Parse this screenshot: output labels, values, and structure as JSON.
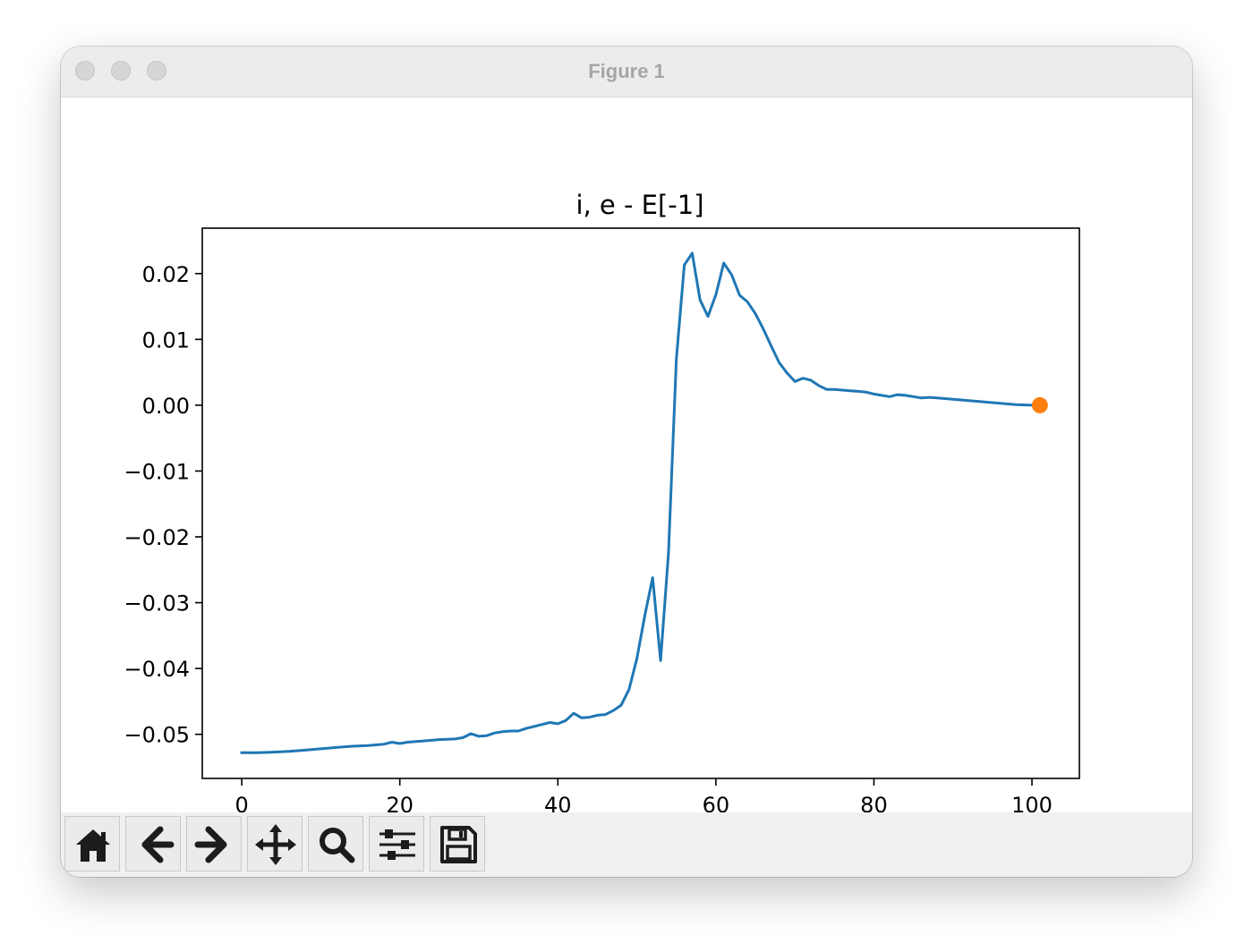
{
  "window": {
    "title": "Figure 1"
  },
  "toolbar": {
    "buttons": [
      {
        "name": "home",
        "icon": "home-icon"
      },
      {
        "name": "back",
        "icon": "arrow-left-icon"
      },
      {
        "name": "forward",
        "icon": "arrow-right-icon"
      },
      {
        "name": "pan",
        "icon": "move-icon"
      },
      {
        "name": "zoom",
        "icon": "magnifier-icon"
      },
      {
        "name": "configure-subplots",
        "icon": "sliders-icon"
      },
      {
        "name": "save",
        "icon": "floppy-disk-icon"
      }
    ]
  },
  "chart_data": {
    "type": "line",
    "title": "i, e - E[-1]",
    "xlabel": "",
    "ylabel": "",
    "xlim": [
      -5,
      106
    ],
    "ylim": [
      -0.0567,
      0.0269
    ],
    "x_ticks": [
      0,
      20,
      40,
      60,
      80,
      100
    ],
    "x_tick_labels": [
      "0",
      "20",
      "40",
      "60",
      "80",
      "100"
    ],
    "y_ticks": [
      0.02,
      0.01,
      0.0,
      -0.01,
      -0.02,
      -0.03,
      -0.04,
      -0.05
    ],
    "y_tick_labels": [
      "0.02",
      "0.01",
      "0.00",
      "−0.01",
      "−0.02",
      "−0.03",
      "−0.04",
      "−0.05"
    ],
    "grid": false,
    "colors": {
      "line": "#1f77b4",
      "marker": "#ff7f0e"
    },
    "series": [
      {
        "x": [
          0,
          2,
          4,
          6,
          8,
          10,
          12,
          14,
          16,
          18,
          19,
          20,
          21,
          23,
          25,
          27,
          28,
          29,
          30,
          31,
          32,
          33,
          34,
          35,
          36,
          37,
          38,
          39,
          40,
          41,
          42,
          43,
          44,
          45,
          46,
          47,
          48,
          49,
          50,
          51,
          52,
          53,
          54,
          55,
          56,
          57,
          58,
          59,
          60,
          61,
          62,
          63,
          64,
          65,
          66,
          67,
          68,
          69,
          70,
          71,
          72,
          73,
          74,
          75,
          76,
          77,
          78,
          79,
          80,
          81,
          82,
          83,
          84,
          85,
          86,
          87,
          88,
          89,
          90,
          92,
          94,
          96,
          98,
          100,
          101
        ],
        "values": [
          -0.0528,
          -0.0528,
          -0.0527,
          -0.0526,
          -0.0524,
          -0.0522,
          -0.052,
          -0.0518,
          -0.0517,
          -0.0515,
          -0.0512,
          -0.0514,
          -0.0512,
          -0.051,
          -0.0508,
          -0.0507,
          -0.0505,
          -0.0499,
          -0.0503,
          -0.0502,
          -0.0498,
          -0.0496,
          -0.0495,
          -0.0495,
          -0.0491,
          -0.0488,
          -0.0485,
          -0.0482,
          -0.0484,
          -0.0479,
          -0.0468,
          -0.0475,
          -0.0474,
          -0.0471,
          -0.047,
          -0.0464,
          -0.0456,
          -0.0432,
          -0.0385,
          -0.032,
          -0.0262,
          -0.0388,
          -0.0225,
          0.007,
          0.0213,
          0.0231,
          0.016,
          0.0135,
          0.0168,
          0.0216,
          0.0198,
          0.0167,
          0.0157,
          0.0139,
          0.0116,
          0.009,
          0.0065,
          0.0049,
          0.0036,
          0.0041,
          0.0038,
          0.003,
          0.0024,
          0.0024,
          0.0023,
          0.0022,
          0.0021,
          0.002,
          0.0017,
          0.0015,
          0.0013,
          0.0016,
          0.0015,
          0.0013,
          0.0011,
          0.0012,
          0.0011,
          0.001,
          0.0009,
          0.0007,
          0.0005,
          0.0003,
          0.0001,
          0.0,
          0.0
        ]
      }
    ],
    "highlight_point": {
      "x": 101,
      "y": 0.0
    }
  }
}
